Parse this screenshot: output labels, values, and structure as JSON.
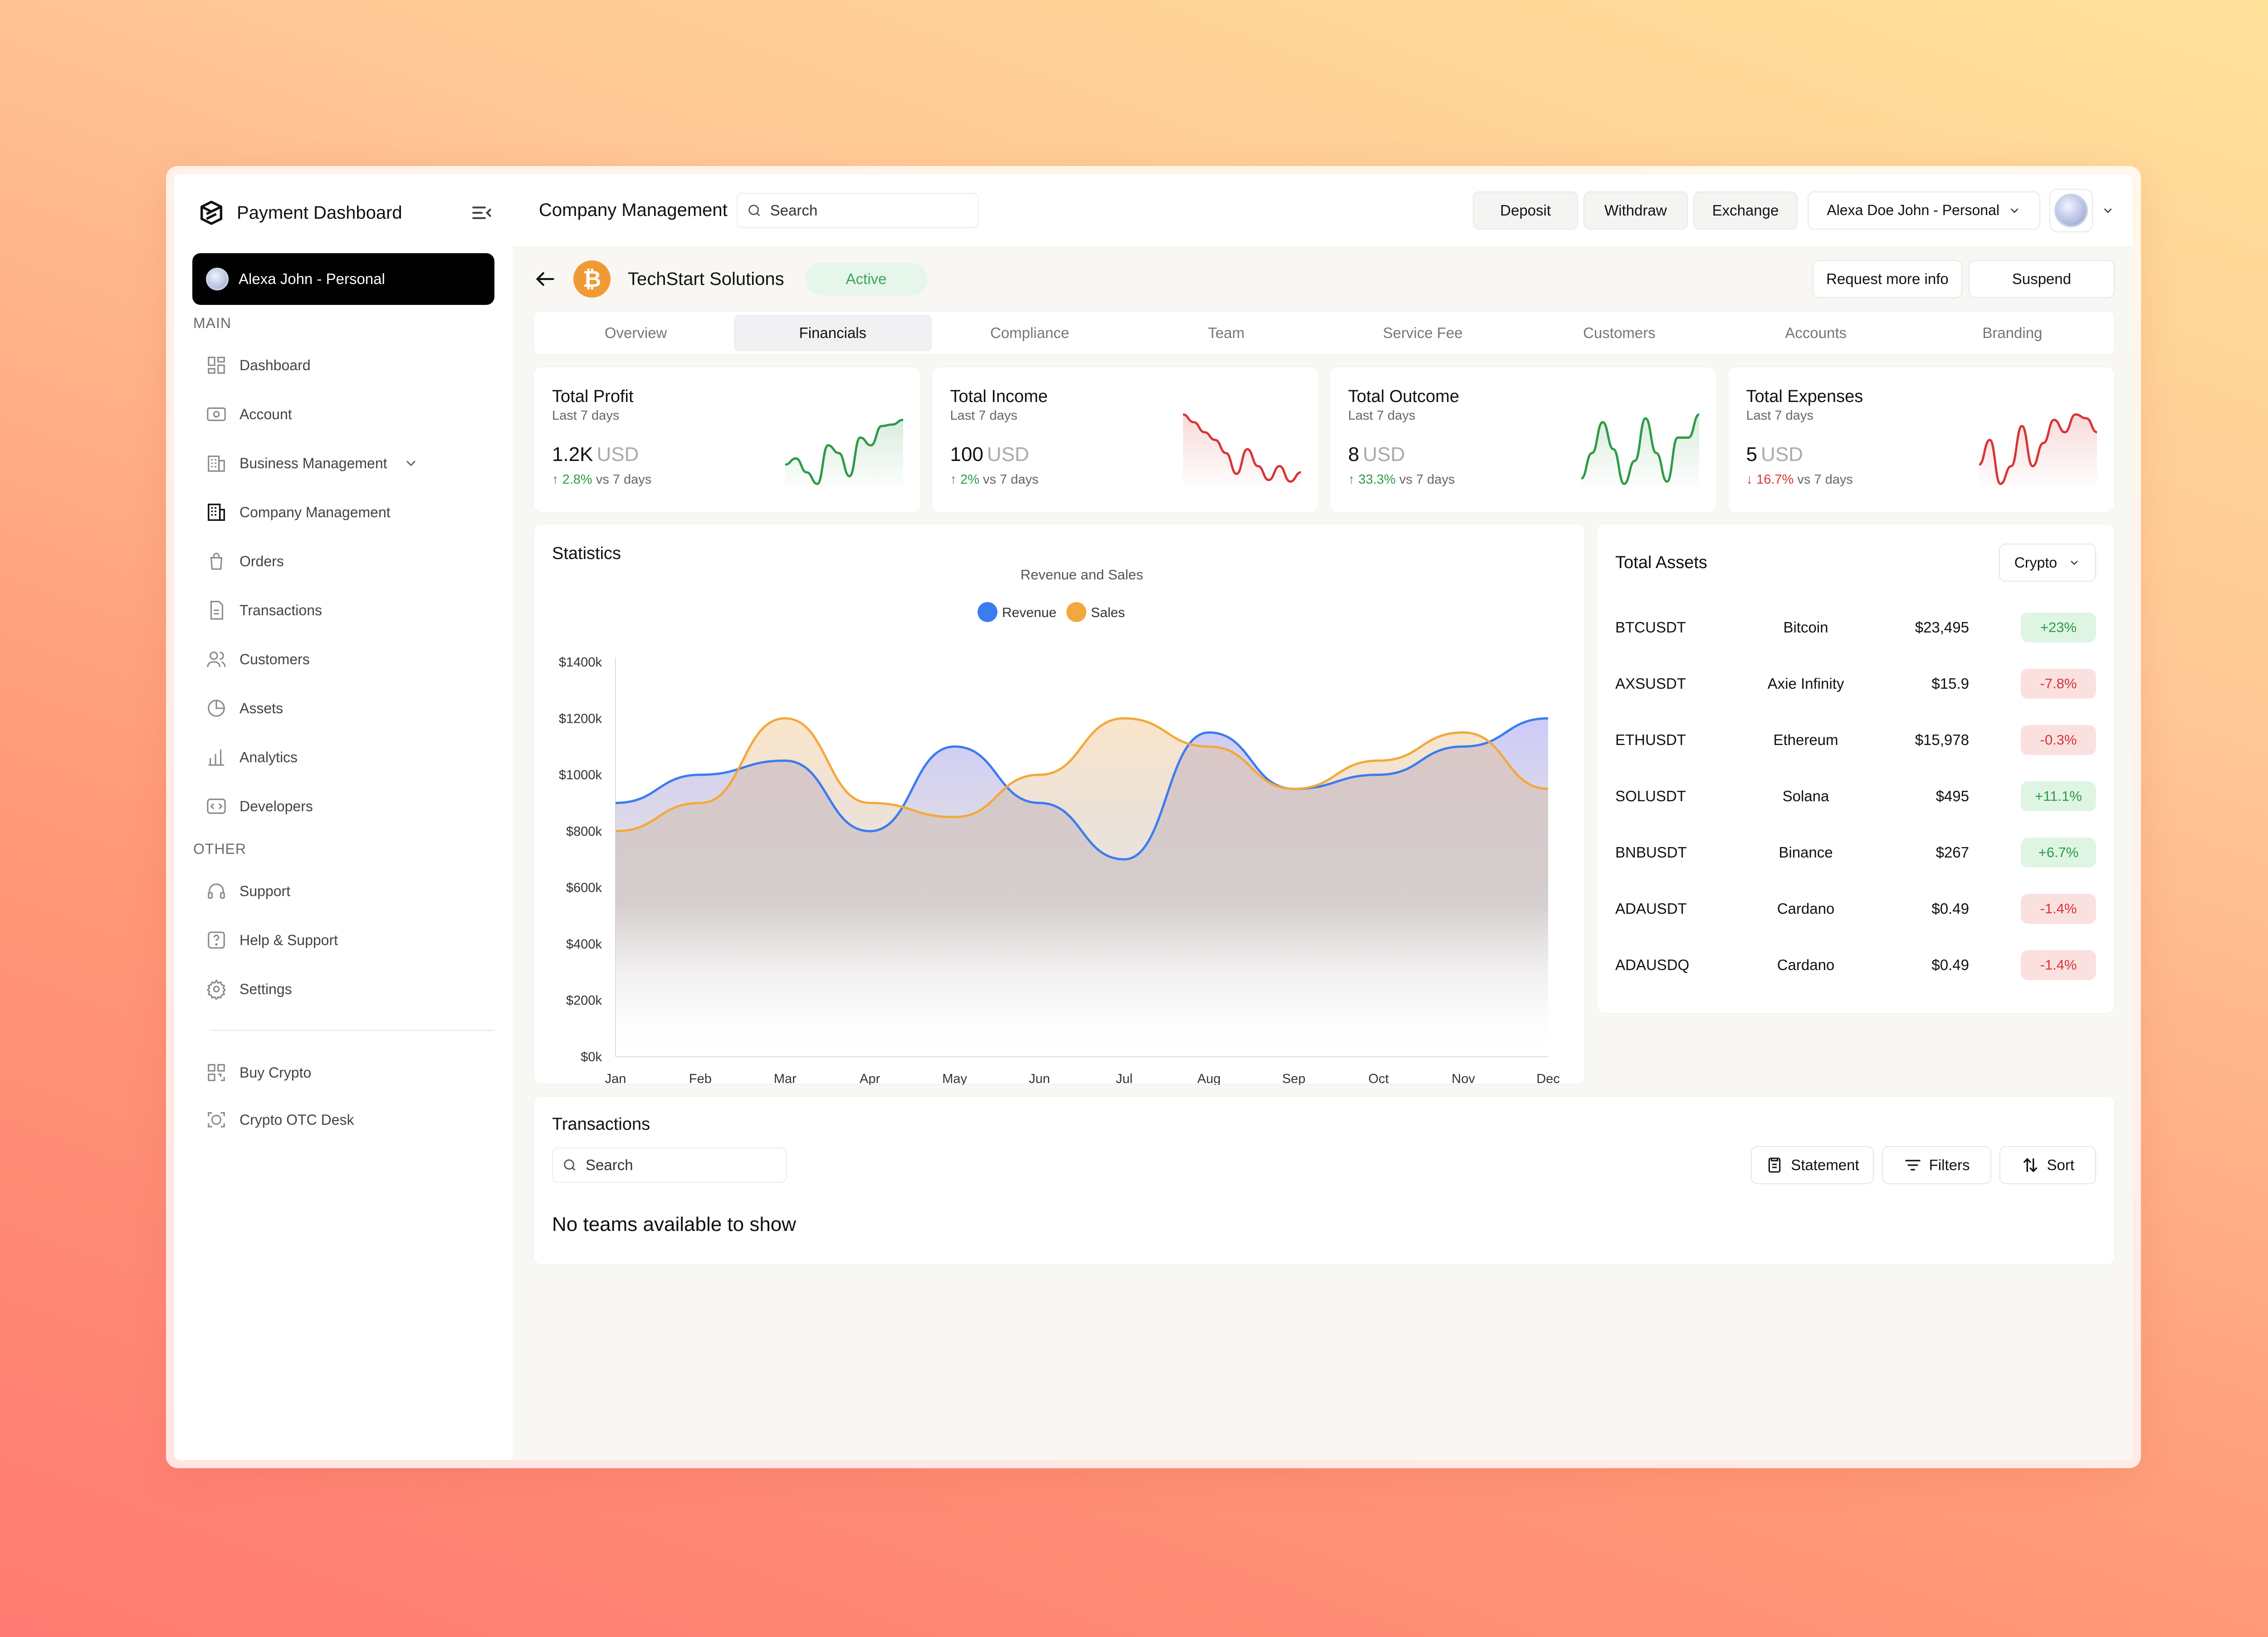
{
  "brand": {
    "title": "Payment Dashboard"
  },
  "account": {
    "label": "Alexa John - Personal"
  },
  "sidebar": {
    "main_label": "MAIN",
    "main_items": [
      {
        "label": "Dashboard",
        "icon": "grid-icon"
      },
      {
        "label": "Account",
        "icon": "wallet-icon"
      },
      {
        "label": "Business Management",
        "icon": "building-icon"
      },
      {
        "label": "Company Management",
        "icon": "office-icon"
      },
      {
        "label": "Orders",
        "icon": "bag-icon"
      },
      {
        "label": "Transactions",
        "icon": "document-icon"
      },
      {
        "label": "Customers",
        "icon": "users-icon"
      },
      {
        "label": "Assets",
        "icon": "pie-icon"
      },
      {
        "label": "Analytics",
        "icon": "bar-chart-icon"
      },
      {
        "label": "Developers",
        "icon": "code-icon"
      }
    ],
    "other_label": "OTHER",
    "other_items": [
      {
        "label": "Support",
        "icon": "headphones-icon"
      },
      {
        "label": "Help & Support",
        "icon": "help-icon"
      },
      {
        "label": "Settings",
        "icon": "gear-icon"
      }
    ],
    "extra_items": [
      {
        "label": "Buy Crypto",
        "icon": "scan-icon"
      },
      {
        "label": "Crypto OTC Desk",
        "icon": "otc-icon"
      }
    ]
  },
  "topbar": {
    "title": "Company Management",
    "search_placeholder": "Search",
    "deposit": "Deposit",
    "withdraw": "Withdraw",
    "exchange": "Exchange",
    "profile": "Alexa Doe John - Personal"
  },
  "company": {
    "name": "TechStart Solutions",
    "status": "Active",
    "coin_symbol": "₿",
    "request_info": "Request more info",
    "suspend": "Suspend"
  },
  "tabs": [
    "Overview",
    "Financials",
    "Compliance",
    "Team",
    "Service Fee",
    "Customers",
    "Accounts",
    "Branding"
  ],
  "active_tab": "Financials",
  "stats": [
    {
      "title": "Total Profit",
      "period": "Last 7 days",
      "value": "1.2K",
      "currency": "USD",
      "arrow": "↑",
      "delta": "2.8%",
      "compare": "vs 7 days",
      "trend": "up",
      "color": "#2f9a46"
    },
    {
      "title": "Total Income",
      "period": "Last 7 days",
      "value": "100",
      "currency": "USD",
      "arrow": "↑",
      "delta": "2%",
      "compare": "vs 7 days",
      "trend": "up",
      "color": "#d83535"
    },
    {
      "title": "Total Outcome",
      "period": "Last 7 days",
      "value": "8",
      "currency": "USD",
      "arrow": "↑",
      "delta": "33.3%",
      "compare": "vs 7 days",
      "trend": "up",
      "color": "#2f9a46"
    },
    {
      "title": "Total Expenses",
      "period": "Last 7 days",
      "value": "5",
      "currency": "USD",
      "arrow": "↓",
      "delta": "16.7%",
      "compare": "vs 7 days",
      "trend": "down",
      "color": "#d83535"
    }
  ],
  "statistics": {
    "title": "Statistics"
  },
  "chart_data": {
    "type": "area",
    "title": "Revenue and Sales",
    "categories": [
      "Jan",
      "Feb",
      "Mar",
      "Apr",
      "May",
      "Jun",
      "Jul",
      "Aug",
      "Sep",
      "Oct",
      "Nov",
      "Dec"
    ],
    "series": [
      {
        "name": "Revenue",
        "color": "#3b7cf0",
        "values": [
          900,
          1000,
          1050,
          800,
          1100,
          900,
          700,
          1150,
          950,
          1000,
          1100,
          1200
        ]
      },
      {
        "name": "Sales",
        "color": "#f2a93b",
        "values": [
          800,
          900,
          1200,
          900,
          850,
          1000,
          1200,
          1100,
          950,
          1050,
          1150,
          950
        ]
      }
    ],
    "y_ticks": [
      "$0k",
      "$200k",
      "$400k",
      "$600k",
      "$800k",
      "$1000k",
      "$1200k",
      "$1400k"
    ],
    "ylim": [
      0,
      1400
    ],
    "legend": "top-center",
    "grid": false
  },
  "assets": {
    "title": "Total Assets",
    "filter": "Crypto",
    "rows": [
      {
        "symbol": "BTCUSDT",
        "name": "Bitcoin",
        "price": "$23,495",
        "change": "+23%",
        "dir": "pos"
      },
      {
        "symbol": "AXSUSDT",
        "name": "Axie Infinity",
        "price": "$15.9",
        "change": "-7.8%",
        "dir": "neg"
      },
      {
        "symbol": "ETHUSDT",
        "name": "Ethereum",
        "price": "$15,978",
        "change": "-0.3%",
        "dir": "neg"
      },
      {
        "symbol": "SOLUSDT",
        "name": "Solana",
        "price": "$495",
        "change": "+11.1%",
        "dir": "pos"
      },
      {
        "symbol": "BNBUSDT",
        "name": "Binance",
        "price": "$267",
        "change": "+6.7%",
        "dir": "pos"
      },
      {
        "symbol": "ADAUSDT",
        "name": "Cardano",
        "price": "$0.49",
        "change": "-1.4%",
        "dir": "neg"
      },
      {
        "symbol": "ADAUSDQ",
        "name": "Cardano",
        "price": "$0.49",
        "change": "-1.4%",
        "dir": "neg"
      }
    ]
  },
  "transactions": {
    "title": "Transactions",
    "search_placeholder": "Search",
    "statement": "Statement",
    "filters": "Filters",
    "sort": "Sort",
    "empty": "No teams available to show"
  }
}
